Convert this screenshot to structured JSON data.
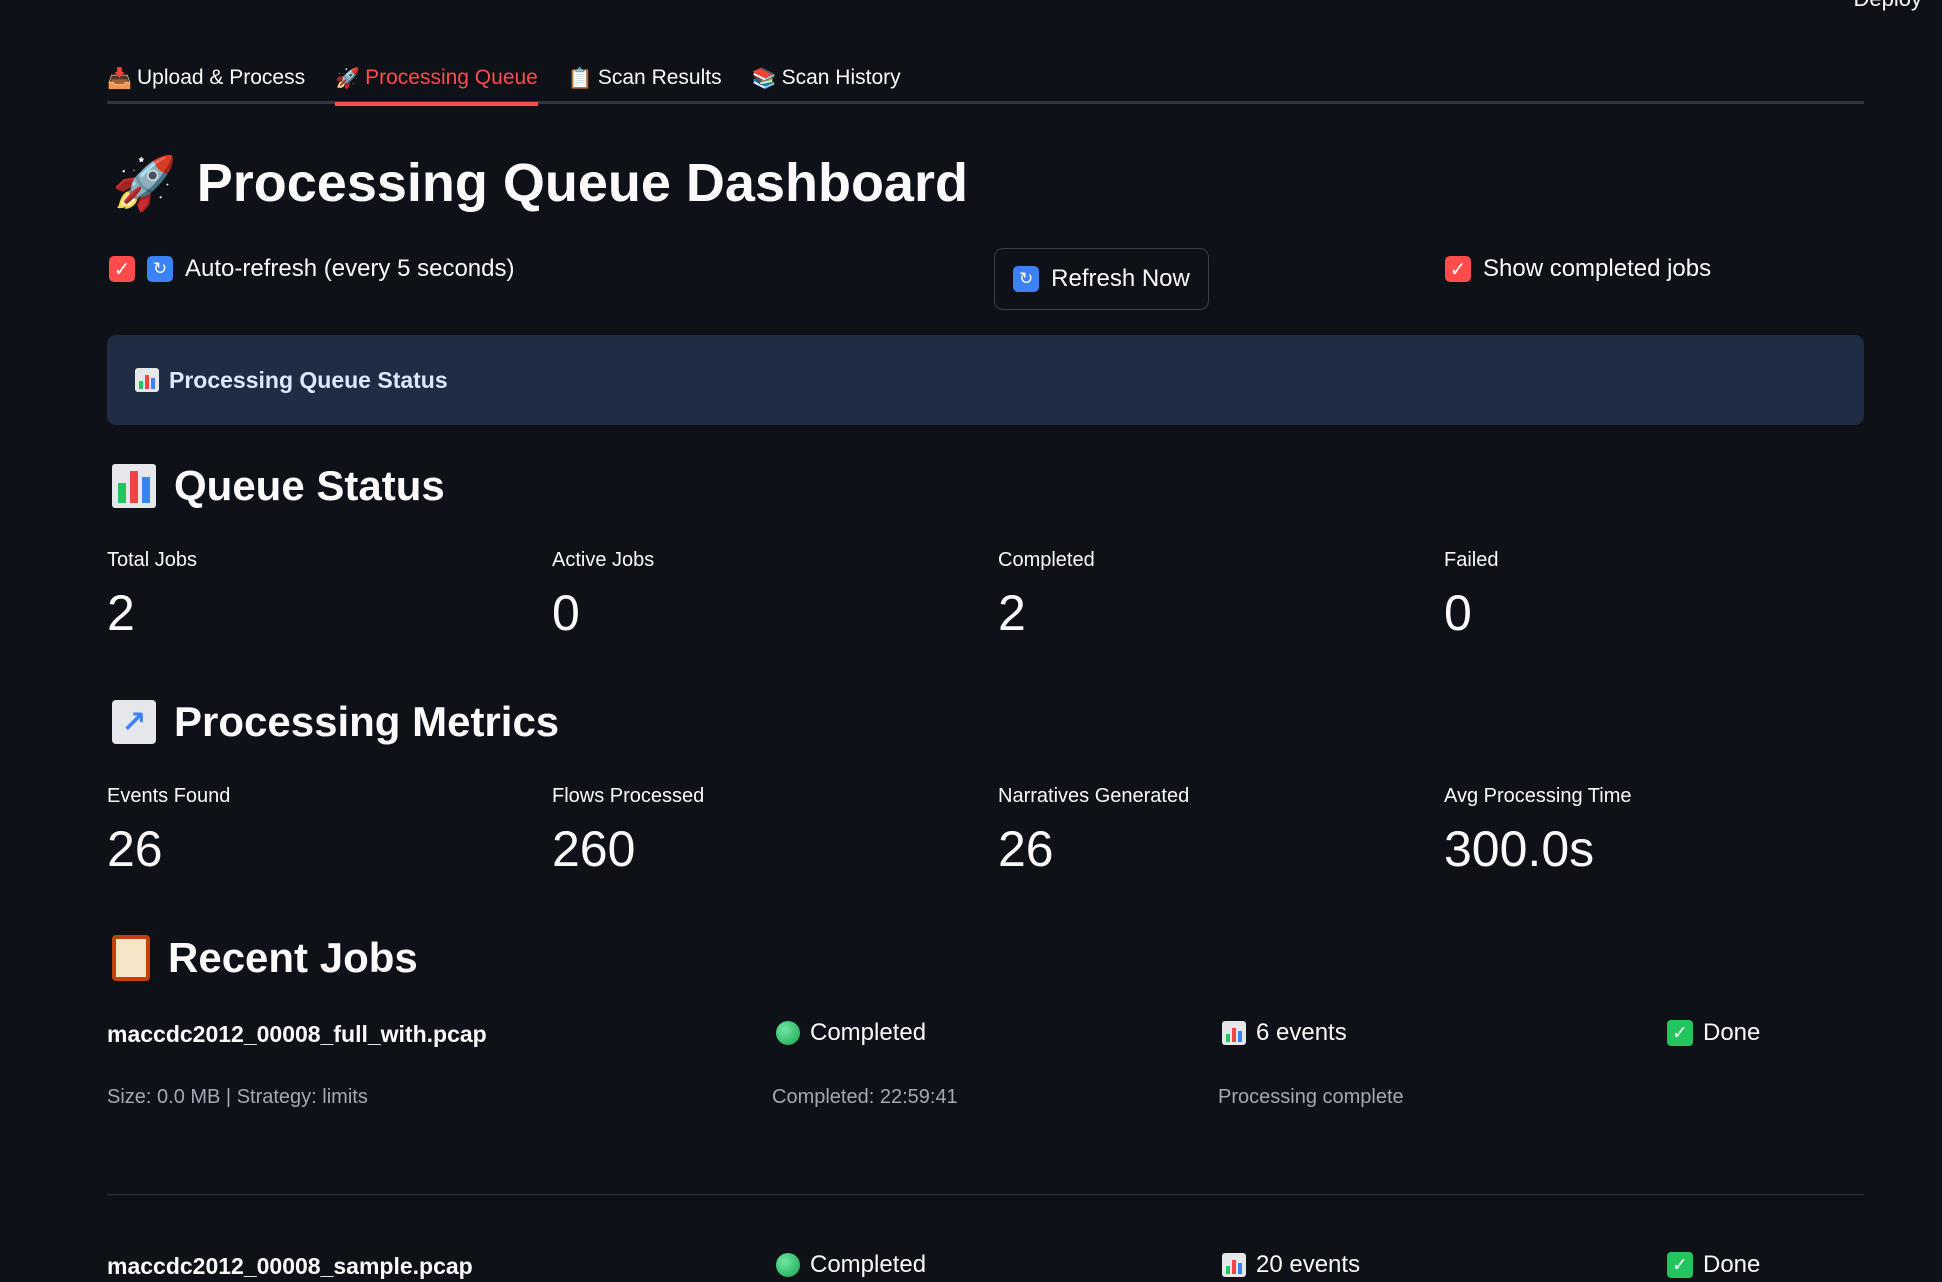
{
  "header": {
    "deploy_label": "Deploy"
  },
  "tabs": [
    {
      "icon": "inbox-tray-icon",
      "glyph": "📥",
      "label": "Upload & Process",
      "active": false
    },
    {
      "icon": "rocket-icon",
      "glyph": "🚀",
      "label": "Processing Queue",
      "active": true
    },
    {
      "icon": "clipboard-icon",
      "glyph": "📋",
      "label": "Scan Results",
      "active": false
    },
    {
      "icon": "books-icon",
      "glyph": "📚",
      "label": "Scan History",
      "active": false
    }
  ],
  "page": {
    "title": "Processing Queue Dashboard",
    "title_glyph": "🚀"
  },
  "controls": {
    "auto_refresh_label": "Auto-refresh (every 5 seconds)",
    "auto_refresh_checked": true,
    "refresh_button": "Refresh Now",
    "show_completed_label": "Show completed jobs",
    "show_completed_checked": true
  },
  "info_box": {
    "text": "Processing Queue Status"
  },
  "queue_status": {
    "heading": "Queue Status",
    "metrics": [
      {
        "label": "Total Jobs",
        "value": "2"
      },
      {
        "label": "Active Jobs",
        "value": "0"
      },
      {
        "label": "Completed",
        "value": "2"
      },
      {
        "label": "Failed",
        "value": "0"
      }
    ]
  },
  "processing_metrics": {
    "heading": "Processing Metrics",
    "metrics": [
      {
        "label": "Events Found",
        "value": "26"
      },
      {
        "label": "Flows Processed",
        "value": "260"
      },
      {
        "label": "Narratives Generated",
        "value": "26"
      },
      {
        "label": "Avg Processing Time",
        "value": "300.0s"
      }
    ]
  },
  "recent_jobs": {
    "heading": "Recent Jobs",
    "jobs": [
      {
        "name": "maccdc2012_00008_full_with.pcap",
        "status": "Completed",
        "events": "6 events",
        "action": "Done",
        "meta": "Size: 0.0 MB | Strategy: limits",
        "completed_at": "Completed: 22:59:41",
        "message": "Processing complete"
      },
      {
        "name": "maccdc2012_00008_sample.pcap",
        "status": "Completed",
        "events": "20 events",
        "action": "Done"
      }
    ]
  },
  "colors": {
    "background": "#0e1117",
    "accent": "#ff4b4b",
    "info_bg": "#1e2d44",
    "success": "#22c55e"
  }
}
